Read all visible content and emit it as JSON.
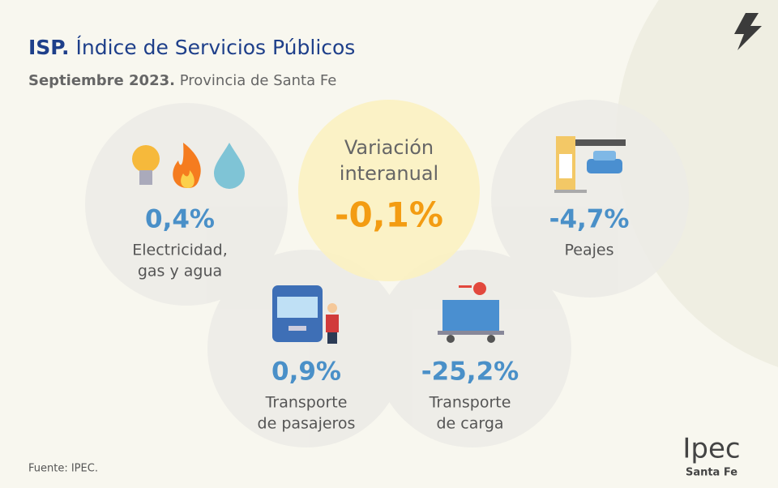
{
  "header": {
    "title_bold": "ISP.",
    "title": "Índice de Servicios Públicos",
    "subtitle_bold": "Septiembre 2023.",
    "subtitle": "Provincia de Santa Fe"
  },
  "center": {
    "label_lines": [
      "Variación",
      "interanual"
    ],
    "value": "-0,1%"
  },
  "items": [
    {
      "value": "0,4%",
      "label_lines": [
        "Electricidad,",
        "gas y agua"
      ]
    },
    {
      "value": "-4,7%",
      "label_lines": [
        "Peajes"
      ]
    },
    {
      "value": "0,9%",
      "label_lines": [
        "Transporte",
        "de pasajeros"
      ]
    },
    {
      "value": "-25,2%",
      "label_lines": [
        "Transporte",
        "de carga"
      ]
    }
  ],
  "footer": {
    "source": "Fuente: IPEC.",
    "logo": "Ipec",
    "logo_sub": "Santa Fe"
  }
}
